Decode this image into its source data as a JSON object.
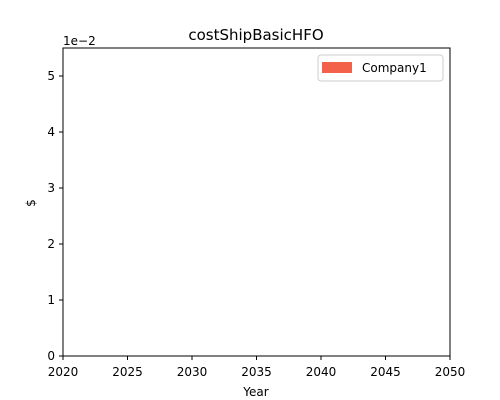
{
  "chart_data": {
    "type": "bar",
    "title": "costShipBasicHFO",
    "xlabel": "Year",
    "ylabel": "$",
    "y_scale_note": "1e−2",
    "xlim": [
      2020,
      2050
    ],
    "ylim": [
      0,
      5.5
    ],
    "x_ticks": [
      "2020",
      "2025",
      "2030",
      "2035",
      "2040",
      "2045",
      "2050"
    ],
    "y_ticks": [
      "0",
      "1",
      "2",
      "3",
      "4",
      "5"
    ],
    "grid": false,
    "legend_position": "top-right",
    "series": [
      {
        "name": "Company1",
        "color": "#f4614a",
        "x": [],
        "values": []
      }
    ]
  }
}
